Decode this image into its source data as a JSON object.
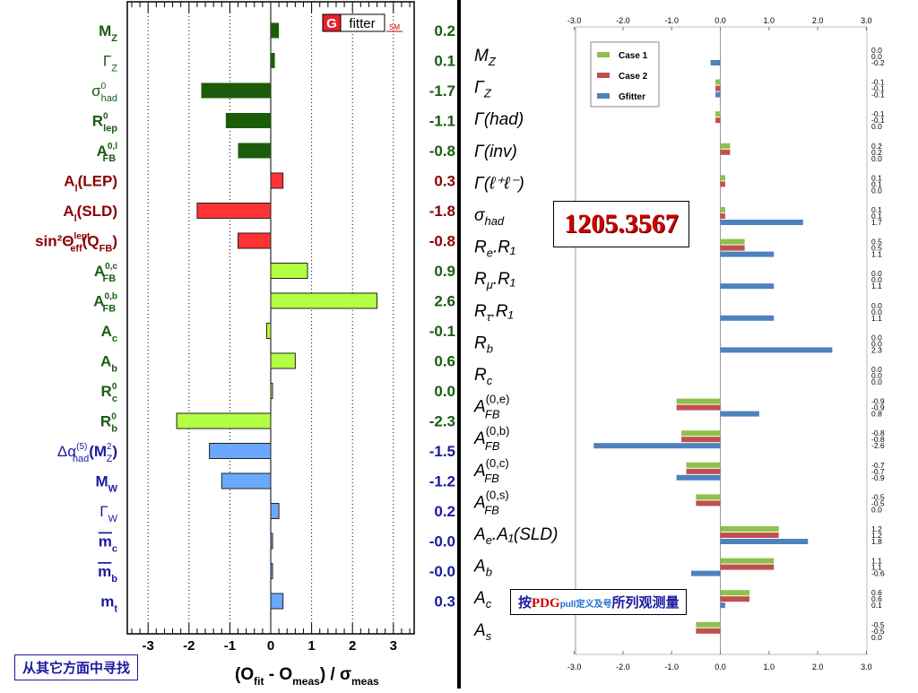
{
  "chart_data": [
    {
      "type": "bar",
      "title": "",
      "xlabel": "(O_fit - O_meas) / σ_meas",
      "xlim": [
        -3.5,
        3.5
      ],
      "xticks": [
        "-3",
        "-2",
        "-1",
        "0",
        "1",
        "2",
        "3"
      ],
      "orientation": "horizontal",
      "grid": "vertical dotted lines",
      "logo": "G fitter SM",
      "categories": [
        {
          "main": "M",
          "sub": "Z",
          "sup": "",
          "color": "#1a5c14"
        },
        {
          "main": "Γ",
          "sub": "Z",
          "sup": "",
          "color": "#1a5c14"
        },
        {
          "main": "σ",
          "sub": "had",
          "sup": "0",
          "color": "#1a5c14"
        },
        {
          "main": "R",
          "sub": "lep",
          "sup": "0",
          "color": "#1a5c14"
        },
        {
          "main": "A",
          "sub": "FB",
          "sup": "0,l",
          "color": "#1a5c14"
        },
        {
          "main": "A",
          "sub": "l",
          "sup": "",
          "suffix": "(LEP)",
          "color": "#8b0000"
        },
        {
          "main": "A",
          "sub": "l",
          "sup": "",
          "suffix": "(SLD)",
          "color": "#8b0000"
        },
        {
          "main": "sin²Θ",
          "sub": "eff",
          "sup": "lept",
          "suffix": "(Q",
          "suffix_sub": "FB",
          "suffix_end": ")",
          "color": "#8b0000"
        },
        {
          "main": "A",
          "sub": "FB",
          "sup": "0,c",
          "color": "#1a5c14"
        },
        {
          "main": "A",
          "sub": "FB",
          "sup": "0,b",
          "color": "#1a5c14"
        },
        {
          "main": "A",
          "sub": "c",
          "sup": "",
          "color": "#1a5c14"
        },
        {
          "main": "A",
          "sub": "b",
          "sup": "",
          "color": "#1a5c14"
        },
        {
          "main": "R",
          "sub": "c",
          "sup": "0",
          "color": "#1a5c14"
        },
        {
          "main": "R",
          "sub": "b",
          "sup": "0",
          "color": "#1a5c14"
        },
        {
          "main": "Δα",
          "sub": "had",
          "sup": "(5)",
          "suffix": "(M",
          "suffix_sub": "Z",
          "suffix_sup": "2",
          "suffix_end": ")",
          "color": "#1a1aa0"
        },
        {
          "main": "M",
          "sub": "W",
          "sup": "",
          "color": "#1a1aa0"
        },
        {
          "main": "Γ",
          "sub": "W",
          "sup": "",
          "color": "#1a1aa0"
        },
        {
          "main": "m",
          "sub": "c",
          "sup": "",
          "overline": true,
          "color": "#1a1aa0"
        },
        {
          "main": "m",
          "sub": "b",
          "sup": "",
          "overline": true,
          "color": "#1a1aa0"
        },
        {
          "main": "m",
          "sub": "t",
          "sup": "",
          "color": "#1a1aa0"
        }
      ],
      "values": [
        0.2,
        0.1,
        -1.7,
        -1.1,
        -0.8,
        0.3,
        -1.8,
        -0.8,
        0.9,
        2.6,
        -0.1,
        0.6,
        0.0,
        -2.3,
        -1.5,
        -1.2,
        0.2,
        -0.0,
        -0.0,
        0.3
      ],
      "value_labels": [
        "0.2",
        "0.1",
        "-1.7",
        "-1.1",
        "-0.8",
        "0.3",
        "-1.8",
        "-0.8",
        "0.9",
        "2.6",
        "-0.1",
        "0.6",
        "0.0",
        "-2.3",
        "-1.5",
        "-1.2",
        "0.2",
        "-0.0",
        "-0.0",
        "0.3"
      ],
      "bar_colors": [
        "#1a5c0a",
        "#1a5c0a",
        "#1a5c0a",
        "#1a5c0a",
        "#1a5c0a",
        "#ff3333",
        "#ff3333",
        "#ff3333",
        "#b2ff44",
        "#b2ff44",
        "#b2ff44",
        "#b2ff44",
        "#b2ff44",
        "#b2ff44",
        "#6aa8ff",
        "#6aa8ff",
        "#6aa8ff",
        "#6aa8ff",
        "#6aa8ff",
        "#6aa8ff"
      ]
    },
    {
      "type": "bar",
      "title": "",
      "orientation": "horizontal",
      "xlim": [
        -3.0,
        3.0
      ],
      "xticks": [
        "-3.0",
        "-2.0",
        "-1.0",
        "0.0",
        "1.0",
        "2.0",
        "3.0"
      ],
      "legend_position": "top-left",
      "series": [
        {
          "name": "Case 1",
          "color": "#8fbf4d",
          "values": [
            0.0,
            -0.1,
            -0.1,
            0.2,
            0.1,
            0.1,
            0.5,
            0.0,
            0.0,
            0.0,
            0.0,
            -0.9,
            -0.8,
            -0.7,
            -0.5,
            1.2,
            1.1,
            0.6,
            -0.5
          ]
        },
        {
          "name": "Case 2",
          "color": "#c0504d",
          "values": [
            0.0,
            -0.1,
            -0.1,
            0.2,
            0.1,
            0.1,
            0.5,
            0.0,
            0.0,
            0.0,
            0.0,
            -0.9,
            -0.8,
            -0.7,
            -0.5,
            1.2,
            1.1,
            0.6,
            -0.5
          ]
        },
        {
          "name": "Gfitter",
          "color": "#4f81bd",
          "values": [
            -0.2,
            -0.1,
            0.0,
            0.0,
            0.0,
            1.7,
            1.1,
            1.1,
            1.1,
            2.3,
            0.0,
            0.8,
            -2.6,
            -0.9,
            0.0,
            1.8,
            -0.6,
            0.1,
            0.0
          ]
        }
      ],
      "categories": [
        "M_Z",
        "Γ_Z",
        "Γ(had)",
        "Γ(inv)",
        "Γ(ℓ⁺ℓ⁻)",
        "σ_had",
        "R_e.R_1",
        "R_μ.R_1",
        "R_τ.R_1",
        "R_b",
        "R_c",
        "A_FB^(0,e)",
        "A_FB^(0,b)",
        "A_FB^(0,c)",
        "A_FB^(0,s)",
        "A_e.A_l(SLD)",
        "A_b",
        "A_c",
        "A_s"
      ],
      "value_labels": [
        [
          "0.0",
          "0.0",
          "-0.2"
        ],
        [
          "-0.1",
          "-0.1",
          "-0.1"
        ],
        [
          "-0.1",
          "-0.1",
          "0.0"
        ],
        [
          "0.2",
          "0.2",
          "0.0"
        ],
        [
          "0.1",
          "0.1",
          "0.0"
        ],
        [
          "0.1",
          "0.1",
          "1.7"
        ],
        [
          "0.5",
          "0.5",
          "1.1"
        ],
        [
          "0.0",
          "0.0",
          "1.1"
        ],
        [
          "0.0",
          "0.0",
          "1.1"
        ],
        [
          "0.0",
          "0.0",
          "2.3"
        ],
        [
          "0.0",
          "0.0",
          "0.0"
        ],
        [
          "-0.9",
          "-0.9",
          "0.8"
        ],
        [
          "-0.8",
          "-0.8",
          "-2.6"
        ],
        [
          "-0.7",
          "-0.7",
          "-0.9"
        ],
        [
          "-0.5",
          "-0.5",
          "0.0"
        ],
        [
          "1.2",
          "1.2",
          "1.8"
        ],
        [
          "1.1",
          "1.1",
          "-0.6"
        ],
        [
          "0.6",
          "0.6",
          "0.1"
        ],
        [
          "-0.5",
          "-0.5",
          "0.0"
        ]
      ]
    }
  ],
  "notes": {
    "left_bottom": "从其它方面中寻找",
    "arxiv": "1205.3567",
    "pdg_prefix": "按",
    "pdg_brand": "PDG",
    "pdg_small": "pull定义及号",
    "pdg_suffix": "所列观测量"
  },
  "colors": {
    "arxiv_text": "#cc0000",
    "pdg_brand": "#cc0000",
    "pdg_small": "#1a6fd0",
    "note_text": "#1a1aa0"
  }
}
